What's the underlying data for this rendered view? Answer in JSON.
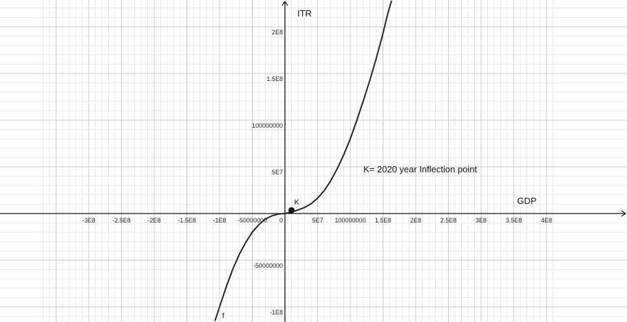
{
  "chart_data": {
    "type": "line",
    "xlabel": "GDP",
    "ylabel": "ITR",
    "xlim": [
      -370000000,
      410000000
    ],
    "ylim": [
      -115000000,
      228000000
    ],
    "x_ticks": [
      {
        "value": -300000000,
        "label": "-3E8"
      },
      {
        "value": -250000000,
        "label": "-2.5E8"
      },
      {
        "value": -200000000,
        "label": "-2E8"
      },
      {
        "value": -150000000,
        "label": "-1.5E8"
      },
      {
        "value": -100000000,
        "label": "-1E8"
      },
      {
        "value": -50000000,
        "label": "-50000000"
      },
      {
        "value": 0,
        "label": "0"
      },
      {
        "value": 50000000,
        "label": "5E7"
      },
      {
        "value": 100000000,
        "label": "100000000"
      },
      {
        "value": 150000000,
        "label": "1.5E8"
      },
      {
        "value": 200000000,
        "label": "2E8"
      },
      {
        "value": 250000000,
        "label": "2.5E8"
      },
      {
        "value": 300000000,
        "label": "3E8"
      },
      {
        "value": 350000000,
        "label": "3.5E8"
      },
      {
        "value": 400000000,
        "label": "4E8"
      }
    ],
    "y_ticks": [
      {
        "value": 200000000,
        "label": "2E8"
      },
      {
        "value": 150000000,
        "label": "1.5E8"
      },
      {
        "value": 100000000,
        "label": "100000000"
      },
      {
        "value": 50000000,
        "label": "5E7"
      },
      {
        "value": -50000000,
        "label": "-50000000"
      },
      {
        "value": -100000000,
        "label": "-1E8"
      }
    ],
    "grid": true,
    "series": [
      {
        "name": "f",
        "points": [
          [
            -107000000,
            -115000000
          ],
          [
            -100000000,
            -100000000
          ],
          [
            -90000000,
            -79000000
          ],
          [
            -80000000,
            -60000000
          ],
          [
            -70000000,
            -44000000
          ],
          [
            -60000000,
            -31000000
          ],
          [
            -50000000,
            -20000000
          ],
          [
            -40000000,
            -12000000
          ],
          [
            -30000000,
            -6000000
          ],
          [
            -20000000,
            -2500000
          ],
          [
            -10000000,
            -600000
          ],
          [
            0,
            0
          ],
          [
            10000000,
            1500000
          ],
          [
            20000000,
            3800000
          ],
          [
            30000000,
            6500000
          ],
          [
            40000000,
            10500000
          ],
          [
            50000000,
            16500000
          ],
          [
            60000000,
            24500000
          ],
          [
            70000000,
            35000000
          ],
          [
            80000000,
            48000000
          ],
          [
            90000000,
            63000000
          ],
          [
            100000000,
            80000000
          ],
          [
            110000000,
            100000000
          ],
          [
            120000000,
            121000000
          ],
          [
            130000000,
            143000000
          ],
          [
            140000000,
            167000000
          ],
          [
            150000000,
            193000000
          ],
          [
            157000000,
            213000000
          ],
          [
            163000000,
            228000000
          ]
        ]
      }
    ],
    "points": [
      {
        "name": "K",
        "x": 10000000,
        "y": 3500000
      }
    ],
    "annotations": [
      {
        "text": "K= 2020 year Inflection point",
        "x": 120000000,
        "y": 44000000
      }
    ],
    "function_label": {
      "text": "f",
      "x": -96000000,
      "y": -112000000
    }
  },
  "colors": {
    "curve": "#222222",
    "axis": "#111111",
    "major_grid": "#c8c8c8",
    "minor_grid": "#e8e8e8",
    "point": "#111111"
  }
}
